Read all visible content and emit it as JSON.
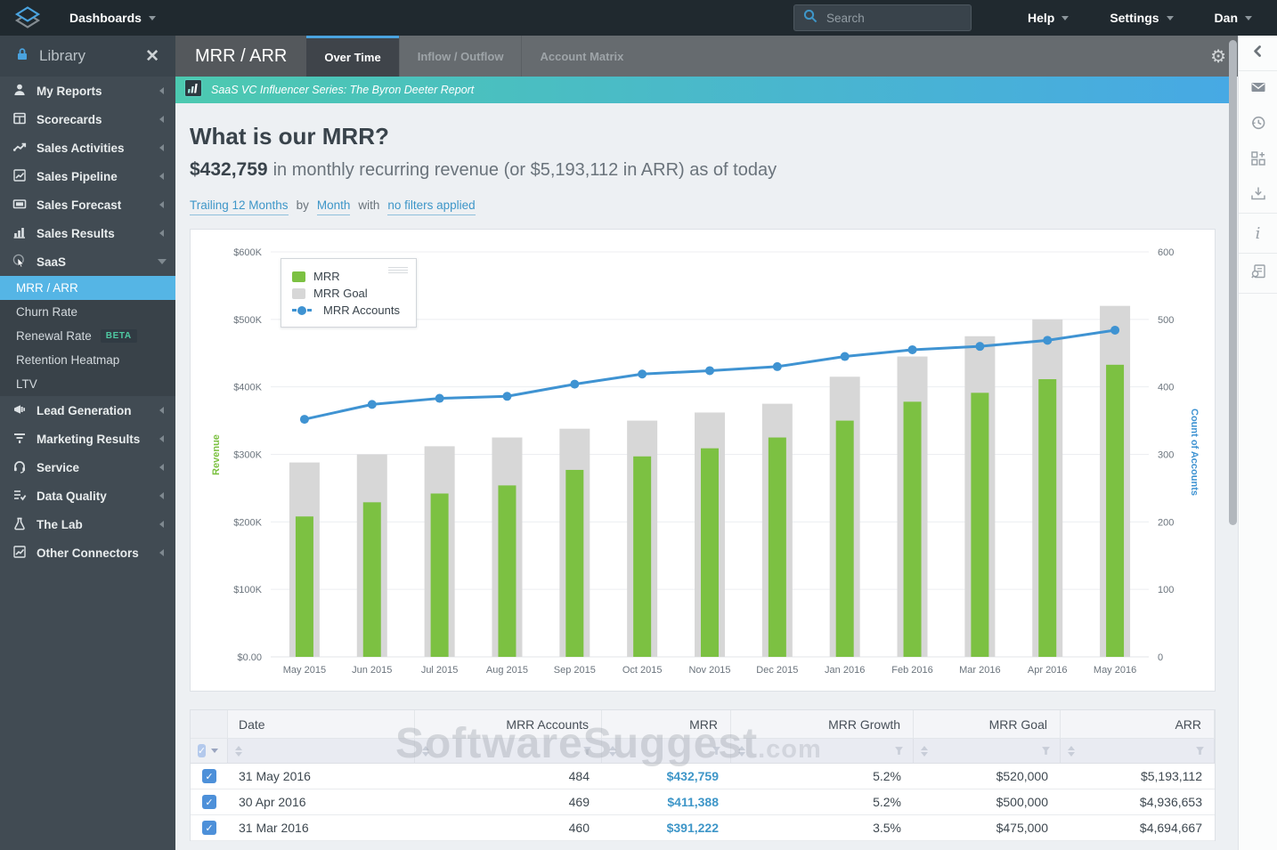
{
  "topnav": {
    "brand": "Dashboards",
    "search_placeholder": "Search",
    "menus": [
      "Help",
      "Settings",
      "Dan"
    ]
  },
  "library": {
    "title": "Library"
  },
  "sidebar": {
    "sections": [
      {
        "type": "item",
        "label": "My Reports",
        "icon": "person-icon",
        "chevron": "left"
      },
      {
        "type": "item",
        "label": "Scorecards",
        "icon": "scorecard-icon",
        "chevron": "left"
      },
      {
        "type": "item",
        "label": "Sales Activities",
        "icon": "trend-chart-icon",
        "chevron": "left"
      },
      {
        "type": "item",
        "label": "Sales Pipeline",
        "icon": "line-chart-icon",
        "chevron": "left"
      },
      {
        "type": "item",
        "label": "Sales Forecast",
        "icon": "forecast-icon",
        "chevron": "left"
      },
      {
        "type": "item",
        "label": "Sales Results",
        "icon": "bar-chart-icon",
        "chevron": "left"
      },
      {
        "type": "item",
        "label": "SaaS",
        "icon": "cursor-icon",
        "chevron": "down",
        "expanded": true
      },
      {
        "type": "subitem",
        "label": "MRR / ARR",
        "active": true
      },
      {
        "type": "subitem",
        "label": "Churn Rate"
      },
      {
        "type": "subitem",
        "label": "Renewal Rate",
        "badge": "BETA"
      },
      {
        "type": "subitem",
        "label": "Retention Heatmap"
      },
      {
        "type": "subitem",
        "label": "LTV"
      },
      {
        "type": "item",
        "label": "Lead Generation",
        "icon": "megaphone-icon",
        "chevron": "left"
      },
      {
        "type": "item",
        "label": "Marketing Results",
        "icon": "funnel-lines-icon",
        "chevron": "left"
      },
      {
        "type": "item",
        "label": "Service",
        "icon": "headset-icon",
        "chevron": "left"
      },
      {
        "type": "item",
        "label": "Data Quality",
        "icon": "checklist-icon",
        "chevron": "left"
      },
      {
        "type": "item",
        "label": "The Lab",
        "icon": "flask-icon",
        "chevron": "left"
      },
      {
        "type": "item",
        "label": "Other Connectors",
        "icon": "line-chart-icon",
        "chevron": "left"
      }
    ]
  },
  "tabbar": {
    "report_title": "MRR / ARR",
    "tabs": [
      {
        "label": "Over Time",
        "active": true
      },
      {
        "label": "Inflow / Outflow",
        "active": false
      },
      {
        "label": "Account Matrix",
        "active": false
      }
    ]
  },
  "banner": {
    "icon": "mini-bar-chart-icon",
    "text": "SaaS VC Influencer Series: The Byron Deeter Report"
  },
  "page": {
    "title": "What is our MRR?",
    "metric_value": "$432,759",
    "metric_caption": "in monthly recurring revenue (or $5,193,112 in ARR) as of today",
    "filter_range": "Trailing 12 Months",
    "filter_by_word": "by",
    "filter_granularity": "Month",
    "filter_with_word": "with",
    "filter_applied": "no filters applied"
  },
  "chart_data": {
    "type": "bar",
    "categories": [
      "May 2015",
      "Jun 2015",
      "Jul 2015",
      "Aug 2015",
      "Sep 2015",
      "Oct 2015",
      "Nov 2015",
      "Dec 2015",
      "Jan 2016",
      "Feb 2016",
      "Mar 2016",
      "Apr 2016",
      "May 2016"
    ],
    "series": [
      {
        "name": "MRR Goal",
        "type": "bar",
        "color": "#d7d7d7",
        "values": [
          288000,
          300000,
          312000,
          325000,
          338000,
          350000,
          362000,
          375000,
          415000,
          445000,
          475000,
          500000,
          520000
        ]
      },
      {
        "name": "MRR",
        "type": "bar",
        "color": "#7cc142",
        "values": [
          208000,
          229000,
          242000,
          254000,
          277000,
          297000,
          309000,
          325000,
          350000,
          378000,
          391222,
          411388,
          432759
        ]
      },
      {
        "name": "MRR Accounts",
        "type": "line",
        "color": "#3f93d2",
        "values": [
          352,
          374,
          383,
          386,
          404,
          419,
          424,
          430,
          445,
          455,
          460,
          469,
          484
        ]
      }
    ],
    "left_axis": {
      "title": "Revenue",
      "title_color": "#7cc142",
      "min": 0,
      "max": 600000,
      "ticks": [
        "$0.00",
        "$100K",
        "$200K",
        "$300K",
        "$400K",
        "$500K",
        "$600K"
      ]
    },
    "right_axis": {
      "title": "Count of Accounts",
      "title_color": "#3f93d2",
      "min": 0,
      "max": 600,
      "ticks": [
        "0",
        "100",
        "200",
        "300",
        "400",
        "500",
        "600"
      ]
    },
    "legend": [
      "MRR",
      "MRR Goal",
      "MRR Accounts"
    ],
    "legend_position": "top-left",
    "grid": true
  },
  "table": {
    "columns": [
      "Date",
      "MRR Accounts",
      "MRR",
      "MRR Growth",
      "MRR Goal",
      "ARR"
    ],
    "rows": [
      {
        "checked": true,
        "cells": [
          "31 May 2016",
          "484",
          "$432,759",
          "5.2%",
          "$520,000",
          "$5,193,112"
        ]
      },
      {
        "checked": true,
        "cells": [
          "30 Apr 2016",
          "469",
          "$411,388",
          "5.2%",
          "$500,000",
          "$4,936,653"
        ]
      },
      {
        "checked": true,
        "cells": [
          "31 Mar 2016",
          "460",
          "$391,222",
          "3.5%",
          "$475,000",
          "$4,694,667"
        ]
      }
    ]
  },
  "rail_icons": [
    {
      "icon": "chevron-left-icon",
      "divider": true
    },
    {
      "icon": "envelope-icon",
      "divider": false
    },
    {
      "icon": "history-icon",
      "divider": false
    },
    {
      "icon": "grid-plus-icon",
      "divider": false
    },
    {
      "icon": "import-icon",
      "divider": true
    },
    {
      "icon": "info-icon",
      "divider": true
    },
    {
      "icon": "doc-search-icon",
      "divider": true
    }
  ],
  "watermark": {
    "main": "SoftwareSuggest",
    "suffix": ".com"
  },
  "colors": {
    "accent_blue": "#4aa3df",
    "active_item_blue": "#55b5e5",
    "mrr_green": "#7cc142",
    "goal_gray": "#d7d7d7",
    "line_blue": "#3f93d2",
    "link_blue": "#3e96c8",
    "banner_from": "#4cc9b0",
    "banner_to": "#47a9e4",
    "beta_teal": "#4fc9a2"
  }
}
